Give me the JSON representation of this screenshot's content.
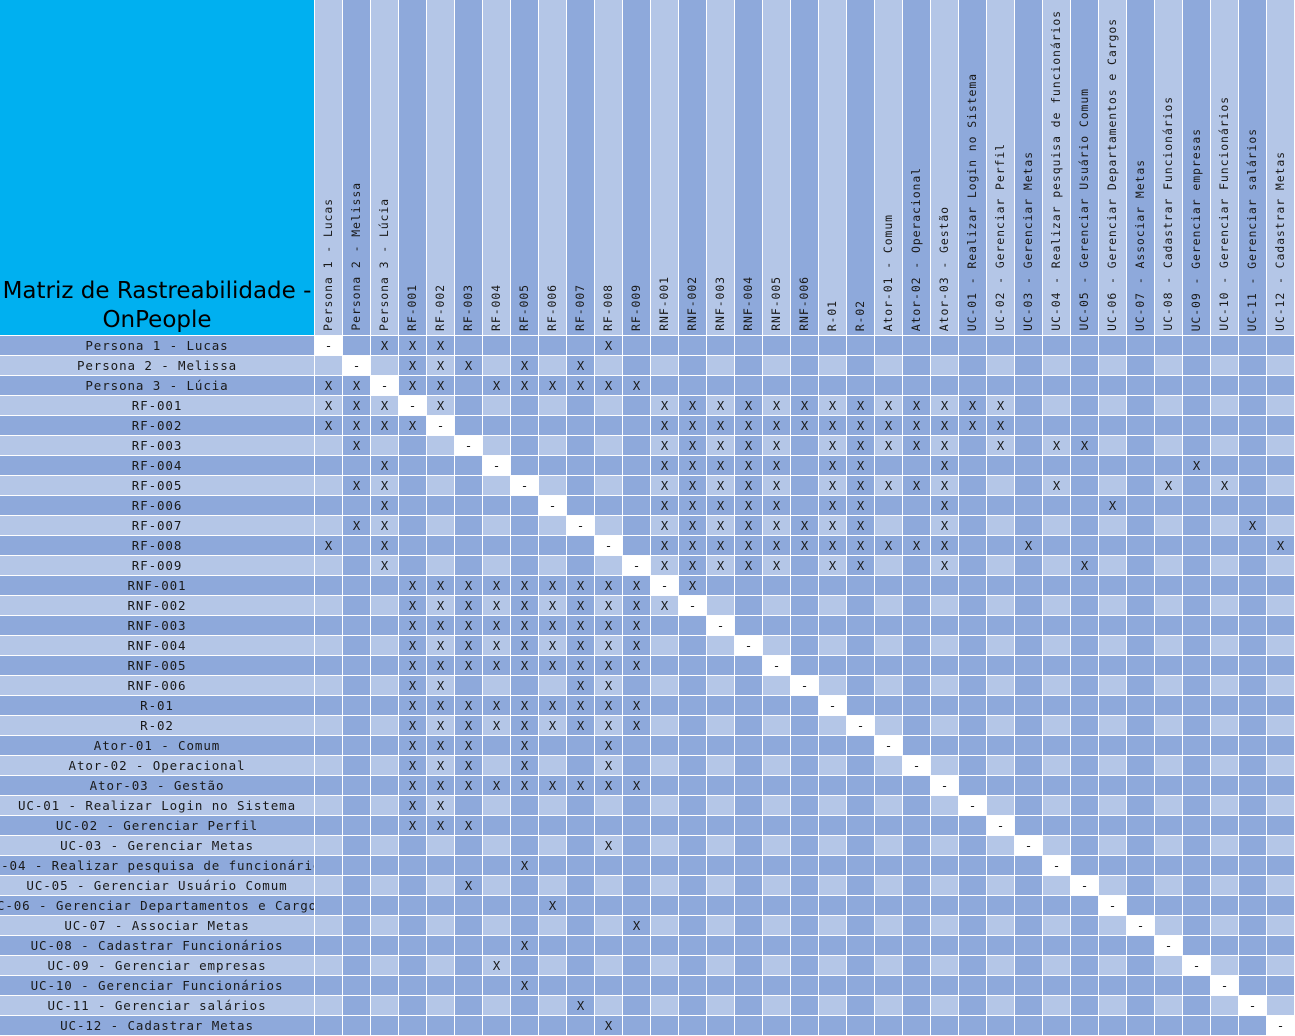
{
  "title": "Matriz de Rastreabilidade - OnPeople",
  "labels": [
    "Persona 1 - Lucas",
    "Persona 2 - Melissa",
    "Persona 3 - Lúcia",
    "RF-001",
    "RF-002",
    "RF-003",
    "RF-004",
    "RF-005",
    "RF-006",
    "RF-007",
    "RF-008",
    "RF-009",
    "RNF-001",
    "RNF-002",
    "RNF-003",
    "RNF-004",
    "RNF-005",
    "RNF-006",
    "R-01",
    "R-02",
    "Ator-01 - Comum",
    "Ator-02 - Operacional",
    "Ator-03 - Gestão",
    "UC-01 - Realizar Login no Sistema",
    "UC-02 - Gerenciar Perfil",
    "UC-03 - Gerenciar Metas",
    "UC-04 - Realizar pesquisa de funcionários",
    "UC-05 - Gerenciar Usuário Comum",
    "UC-06 - Gerenciar Departamentos e Cargos",
    "UC-07 - Associar Metas",
    "UC-08 - Cadastrar Funcionários",
    "UC-09 - Gerenciar empresas",
    "UC-10 - Gerenciar Funcionários",
    "UC-11 - Gerenciar salários",
    "UC-12 - Cadastrar Metas"
  ],
  "marks": {
    "relation": "X",
    "self": "-"
  },
  "matrix": [
    [
      0,
      2,
      3,
      4,
      10
    ],
    [
      1,
      3,
      4,
      5,
      7,
      9
    ],
    [
      0,
      1,
      2,
      3,
      4,
      6,
      7,
      8,
      9,
      10,
      11
    ],
    [
      0,
      1,
      2,
      3,
      4,
      12,
      13,
      14,
      15,
      16,
      17,
      18,
      19,
      20,
      21,
      22,
      23,
      24
    ],
    [
      0,
      1,
      2,
      3,
      4,
      12,
      13,
      14,
      15,
      16,
      17,
      18,
      19,
      20,
      21,
      22,
      23,
      24
    ],
    [
      1,
      5,
      12,
      13,
      14,
      15,
      16,
      18,
      19,
      20,
      21,
      22,
      24,
      26,
      27
    ],
    [
      2,
      6,
      12,
      13,
      14,
      15,
      16,
      18,
      19,
      22,
      31
    ],
    [
      1,
      2,
      7,
      12,
      13,
      14,
      15,
      16,
      18,
      19,
      20,
      21,
      22,
      26,
      30,
      32
    ],
    [
      2,
      8,
      12,
      13,
      14,
      15,
      16,
      18,
      19,
      22,
      28
    ],
    [
      1,
      2,
      9,
      12,
      13,
      14,
      15,
      16,
      17,
      18,
      19,
      22,
      33
    ],
    [
      0,
      2,
      10,
      12,
      13,
      14,
      15,
      16,
      17,
      18,
      19,
      20,
      21,
      22,
      25,
      34
    ],
    [
      2,
      11,
      12,
      13,
      14,
      15,
      16,
      18,
      19,
      22,
      27
    ],
    [
      3,
      4,
      5,
      6,
      7,
      8,
      9,
      10,
      11,
      12,
      13
    ],
    [
      3,
      4,
      5,
      6,
      7,
      8,
      9,
      10,
      11,
      12,
      13
    ],
    [
      3,
      4,
      5,
      6,
      7,
      8,
      9,
      10,
      11,
      14
    ],
    [
      3,
      4,
      5,
      6,
      7,
      8,
      9,
      10,
      11,
      15
    ],
    [
      3,
      4,
      5,
      6,
      7,
      8,
      9,
      10,
      11,
      16
    ],
    [
      3,
      4,
      9,
      10,
      17
    ],
    [
      3,
      4,
      5,
      6,
      7,
      8,
      9,
      10,
      11,
      18
    ],
    [
      3,
      4,
      5,
      6,
      7,
      8,
      9,
      10,
      11,
      19
    ],
    [
      3,
      4,
      5,
      7,
      10,
      20
    ],
    [
      3,
      4,
      5,
      7,
      10,
      21
    ],
    [
      3,
      4,
      5,
      6,
      7,
      8,
      9,
      10,
      11,
      22
    ],
    [
      3,
      4,
      23
    ],
    [
      3,
      4,
      5,
      24
    ],
    [
      10,
      25
    ],
    [
      7,
      26
    ],
    [
      5,
      27
    ],
    [
      8,
      28
    ],
    [
      11,
      29
    ],
    [
      7,
      30
    ],
    [
      6,
      31
    ],
    [
      7,
      32
    ],
    [
      9,
      33
    ],
    [
      10,
      34
    ]
  ]
}
